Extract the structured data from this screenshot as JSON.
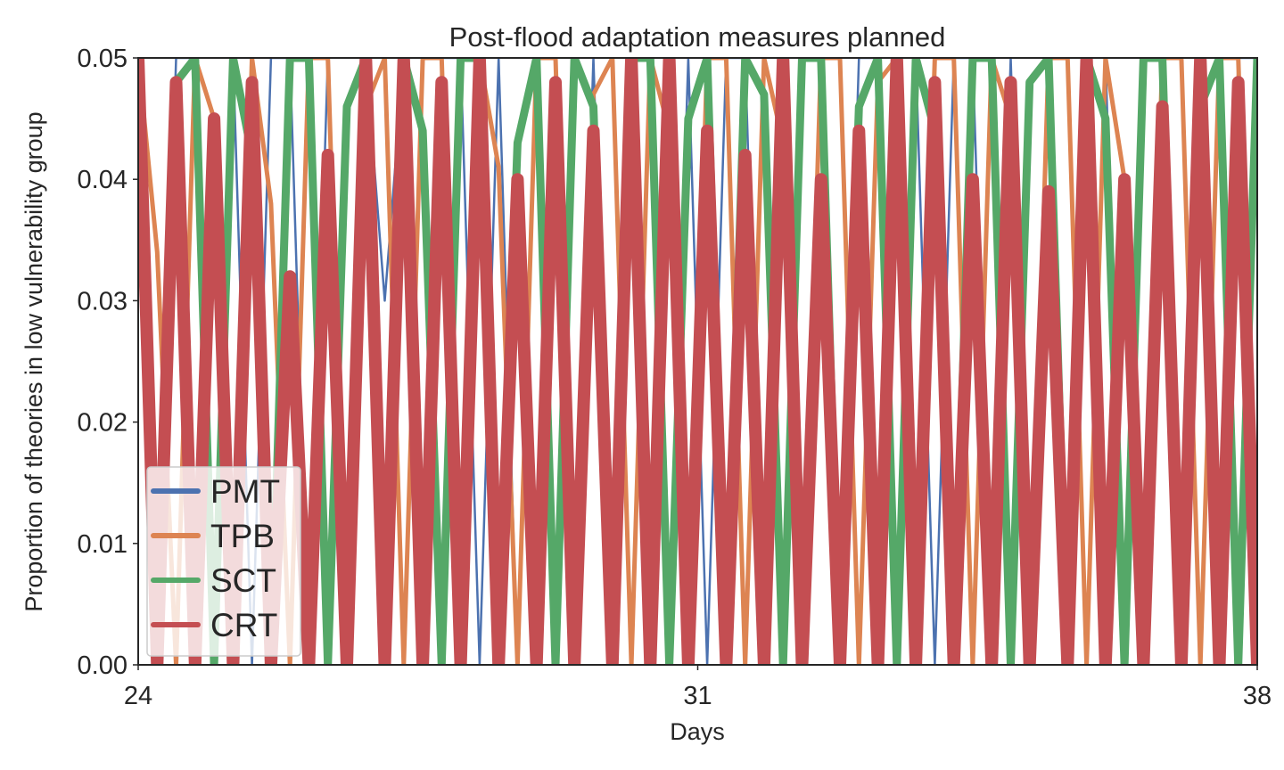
{
  "chart_data": {
    "type": "line",
    "title": "Post-flood adaptation measures planned",
    "xlabel": "Days",
    "ylabel": "Proportion of theories in low vulnerability group",
    "xlim": [
      24,
      38
    ],
    "ylim": [
      0,
      0.05
    ],
    "x_ticks": [
      24,
      31,
      38
    ],
    "x_tick_labels": [
      "24",
      "31",
      "38"
    ],
    "y_ticks": [
      0.0,
      0.01,
      0.02,
      0.03,
      0.04,
      0.05
    ],
    "y_tick_labels": [
      "0.00",
      "0.01",
      "0.02",
      "0.03",
      "0.04",
      "0.05"
    ],
    "grid": false,
    "legend_position": "lower-left",
    "series": [
      {
        "name": "PMT",
        "color": "#4c72b0",
        "values": [
          0.05,
          0.0,
          0.05,
          0.05,
          0.0,
          0.05,
          0.0,
          0.05,
          0.05,
          0.0,
          0.05,
          0.0,
          0.05,
          0.03,
          0.05,
          0.0,
          0.05,
          0.05,
          0.0,
          0.05,
          0.0,
          0.05,
          0.05,
          0.0,
          0.05,
          0.0,
          0.05,
          0.05,
          0.0,
          0.05,
          0.0,
          0.05,
          0.05,
          0.0,
          0.05,
          0.0,
          0.05,
          0.0,
          0.05,
          0.05,
          0.0,
          0.05,
          0.0,
          0.05,
          0.05,
          0.0,
          0.05,
          0.0,
          0.05,
          0.05,
          0.0,
          0.05,
          0.0,
          0.05,
          0.05,
          0.0,
          0.05,
          0.0,
          0.05,
          0.05
        ]
      },
      {
        "name": "TPB",
        "color": "#dd8452",
        "values": [
          0.05,
          0.034,
          0.0,
          0.05,
          0.045,
          0.0,
          0.05,
          0.038,
          0.0,
          0.05,
          0.05,
          0.0,
          0.046,
          0.05,
          0.0,
          0.05,
          0.05,
          0.0,
          0.05,
          0.041,
          0.0,
          0.05,
          0.05,
          0.0,
          0.047,
          0.05,
          0.0,
          0.05,
          0.044,
          0.0,
          0.05,
          0.05,
          0.0,
          0.05,
          0.043,
          0.0,
          0.05,
          0.05,
          0.0,
          0.048,
          0.05,
          0.0,
          0.05,
          0.05,
          0.0,
          0.05,
          0.045,
          0.0,
          0.05,
          0.05,
          0.0,
          0.05,
          0.04,
          0.0,
          0.05,
          0.05,
          0.0,
          0.05,
          0.05,
          0.0
        ]
      },
      {
        "name": "SCT",
        "color": "#55a868",
        "values": [
          0.05,
          0.0,
          0.048,
          0.05,
          0.0,
          0.05,
          0.042,
          0.0,
          0.05,
          0.05,
          0.0,
          0.046,
          0.05,
          0.0,
          0.05,
          0.044,
          0.0,
          0.05,
          0.05,
          0.0,
          0.043,
          0.05,
          0.0,
          0.05,
          0.046,
          0.0,
          0.05,
          0.05,
          0.0,
          0.045,
          0.05,
          0.0,
          0.05,
          0.047,
          0.0,
          0.05,
          0.05,
          0.0,
          0.046,
          0.05,
          0.0,
          0.05,
          0.044,
          0.0,
          0.05,
          0.05,
          0.0,
          0.048,
          0.05,
          0.0,
          0.05,
          0.045,
          0.0,
          0.05,
          0.05,
          0.0,
          0.046,
          0.05,
          0.0,
          0.05
        ]
      },
      {
        "name": "CRT",
        "color": "#c44e52",
        "values": [
          0.05,
          0.0,
          0.048,
          0.0,
          0.045,
          0.0,
          0.048,
          0.0,
          0.032,
          0.0,
          0.042,
          0.0,
          0.05,
          0.0,
          0.05,
          0.0,
          0.048,
          0.0,
          0.05,
          0.0,
          0.04,
          0.0,
          0.048,
          0.0,
          0.044,
          0.0,
          0.05,
          0.0,
          0.05,
          0.0,
          0.044,
          0.0,
          0.042,
          0.0,
          0.05,
          0.0,
          0.04,
          0.0,
          0.044,
          0.0,
          0.05,
          0.0,
          0.048,
          0.0,
          0.04,
          0.0,
          0.048,
          0.0,
          0.039,
          0.0,
          0.05,
          0.0,
          0.04,
          0.0,
          0.046,
          0.0,
          0.05,
          0.0,
          0.048,
          0.0
        ]
      }
    ]
  }
}
